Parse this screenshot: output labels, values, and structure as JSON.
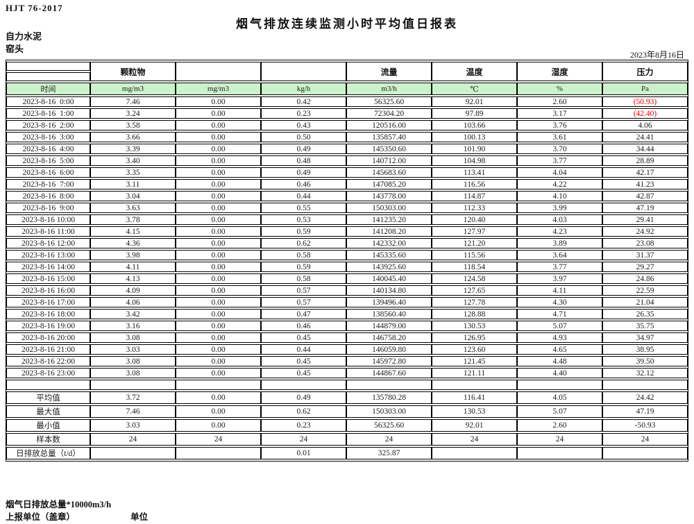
{
  "page": {
    "doc_code": "HJT  76-2017",
    "title": "烟气排放连续监测小时平均值日报表",
    "company": "自力水泥",
    "location": "窑头",
    "date": "2023年8月16日",
    "footnote": "烟气日排放总量*10000m3/h",
    "report_unit_label": "上报单位（盖章）",
    "unit_label": "单位"
  },
  "table": {
    "group_headers": [
      "",
      "颗粒物",
      "",
      "",
      "流量",
      "温度",
      "湿度",
      "压力"
    ],
    "unit_row": [
      "时间",
      "mg/m3",
      "mg/m3",
      "kg/h",
      "m3/h",
      "℃",
      "%",
      "Pa"
    ],
    "colors": {
      "unit_row_bg": "#ccf2cc",
      "negative_red": "#e60000"
    },
    "has_spacer_row": true,
    "rows": [
      {
        "time": "2023-8-16  0:00",
        "values": [
          "7.46",
          "0.00",
          "0.42",
          "56325.60",
          "92.01",
          "2.60",
          "(50.93)"
        ],
        "pressure_red": true
      },
      {
        "time": "2023-8-16  1:00",
        "values": [
          "3.24",
          "0.00",
          "0.23",
          "72304.20",
          "97.89",
          "3.17",
          "(42.40)"
        ],
        "pressure_red": true
      },
      {
        "time": "2023-8-16  2:00",
        "values": [
          "3.58",
          "0.00",
          "0.43",
          "120516.00",
          "103.66",
          "3.76",
          "4.06"
        ],
        "pressure_red": false
      },
      {
        "time": "2023-8-16  3:00",
        "values": [
          "3.66",
          "0.00",
          "0.50",
          "135857.40",
          "100.13",
          "3.61",
          "24.41"
        ],
        "pressure_red": false
      },
      {
        "time": "2023-8-16  4:00",
        "values": [
          "3.39",
          "0.00",
          "0.49",
          "145350.60",
          "101.90",
          "3.70",
          "34.44"
        ],
        "pressure_red": false
      },
      {
        "time": "2023-8-16  5:00",
        "values": [
          "3.40",
          "0.00",
          "0.48",
          "140712.00",
          "104.98",
          "3.77",
          "28.89"
        ],
        "pressure_red": false
      },
      {
        "time": "2023-8-16  6:00",
        "values": [
          "3.35",
          "0.00",
          "0.49",
          "145683.60",
          "113.41",
          "4.04",
          "42.17"
        ],
        "pressure_red": false
      },
      {
        "time": "2023-8-16  7:00",
        "values": [
          "3.11",
          "0.00",
          "0.46",
          "147085.20",
          "116.56",
          "4.22",
          "41.23"
        ],
        "pressure_red": false
      },
      {
        "time": "2023-8-16  8:00",
        "values": [
          "3.04",
          "0.00",
          "0.44",
          "143778.00",
          "114.87",
          "4.10",
          "42.87"
        ],
        "pressure_red": false
      },
      {
        "time": "2023-8-16  9:00",
        "values": [
          "3.63",
          "0.00",
          "0.55",
          "150303.00",
          "112.33",
          "3.99",
          "47.19"
        ],
        "pressure_red": false
      },
      {
        "time": "2023-8-16 10:00",
        "values": [
          "3.78",
          "0.00",
          "0.53",
          "141235.20",
          "120.40",
          "4.03",
          "29.41"
        ],
        "pressure_red": false
      },
      {
        "time": "2023-8-16 11:00",
        "values": [
          "4.15",
          "0.00",
          "0.59",
          "141208.20",
          "127.97",
          "4.23",
          "24.92"
        ],
        "pressure_red": false
      },
      {
        "time": "2023-8-16 12:00",
        "values": [
          "4.36",
          "0.00",
          "0.62",
          "142332.00",
          "121.20",
          "3.89",
          "23.08"
        ],
        "pressure_red": false
      },
      {
        "time": "2023-8-16 13:00",
        "values": [
          "3.98",
          "0.00",
          "0.58",
          "145335.60",
          "115.56",
          "3.64",
          "31.37"
        ],
        "pressure_red": false
      },
      {
        "time": "2023-8-16 14:00",
        "values": [
          "4.11",
          "0.00",
          "0.59",
          "143925.60",
          "118.54",
          "3.77",
          "29.27"
        ],
        "pressure_red": false
      },
      {
        "time": "2023-8-16 15:00",
        "values": [
          "4.13",
          "0.00",
          "0.58",
          "140045.40",
          "124.58",
          "3.97",
          "24.86"
        ],
        "pressure_red": false
      },
      {
        "time": "2023-8-16 16:00",
        "values": [
          "4.09",
          "0.00",
          "0.57",
          "140134.80",
          "127.65",
          "4.11",
          "22.59"
        ],
        "pressure_red": false
      },
      {
        "time": "2023-8-16 17:00",
        "values": [
          "4.06",
          "0.00",
          "0.57",
          "139496.40",
          "127.78",
          "4.30",
          "21.04"
        ],
        "pressure_red": false
      },
      {
        "time": "2023-8-16 18:00",
        "values": [
          "3.42",
          "0.00",
          "0.47",
          "138560.40",
          "128.88",
          "4.71",
          "26.35"
        ],
        "pressure_red": false
      },
      {
        "time": "2023-8-16 19:00",
        "values": [
          "3.16",
          "0.00",
          "0.46",
          "144879.00",
          "130.53",
          "5.07",
          "35.75"
        ],
        "pressure_red": false
      },
      {
        "time": "2023-8-16 20:00",
        "values": [
          "3.08",
          "0.00",
          "0.45",
          "146758.20",
          "126.95",
          "4.93",
          "34.97"
        ],
        "pressure_red": false
      },
      {
        "time": "2023-8-16 21:00",
        "values": [
          "3.03",
          "0.00",
          "0.44",
          "146059.80",
          "123.60",
          "4.65",
          "38.95"
        ],
        "pressure_red": false
      },
      {
        "time": "2023-8-16 22:00",
        "values": [
          "3.08",
          "0.00",
          "0.45",
          "145972.80",
          "121.45",
          "4.48",
          "39.50"
        ],
        "pressure_red": false
      },
      {
        "time": "2023-8-16 23:00",
        "values": [
          "3.08",
          "0.00",
          "0.45",
          "144867.60",
          "121.11",
          "4.40",
          "32.12"
        ],
        "pressure_red": false
      }
    ],
    "summary": [
      {
        "label": "平均值",
        "values": [
          "3.72",
          "0.00",
          "0.49",
          "135780.28",
          "116.41",
          "4.05",
          "24.42"
        ]
      },
      {
        "label": "最大值",
        "values": [
          "7.46",
          "0.00",
          "0.62",
          "150303.00",
          "130.53",
          "5.07",
          "47.19"
        ]
      },
      {
        "label": "最小值",
        "values": [
          "3.03",
          "0.00",
          "0.23",
          "56325.60",
          "92.01",
          "2.60",
          "-50.93"
        ]
      },
      {
        "label": "样本数",
        "values": [
          "24",
          "24",
          "24",
          "24",
          "24",
          "24",
          "24"
        ]
      },
      {
        "label": "日排放总量（t/d）",
        "values": [
          "",
          "",
          "0.01",
          "325.87",
          "",
          "",
          ""
        ]
      }
    ]
  }
}
